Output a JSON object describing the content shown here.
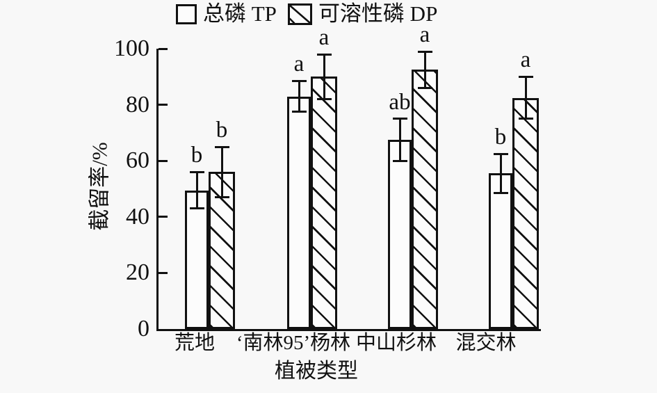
{
  "background": "#f8f8f8",
  "ink": "#111111",
  "chart_data": {
    "type": "bar",
    "categories": [
      "荒地",
      "‘南林95’杨林",
      "中山杉林",
      "混交林"
    ],
    "series": [
      {
        "name": "总磷 TP",
        "fill": "open",
        "values": [
          49.5,
          83,
          67.5,
          55.5
        ],
        "errors": [
          6.5,
          5.5,
          7.5,
          7
        ],
        "sig_letters": [
          "b",
          "a",
          "ab",
          "b"
        ]
      },
      {
        "name": "可溶性磷 DP",
        "fill": "hatched",
        "values": [
          56,
          90,
          92.5,
          82.5
        ],
        "errors": [
          9,
          8,
          6.5,
          7.5
        ],
        "sig_letters": [
          "b",
          "a",
          "a",
          "a"
        ]
      }
    ],
    "xlabel": "植被类型",
    "ylabel": "截留率/%",
    "ylim": [
      0,
      100
    ],
    "yticks": [
      0,
      20,
      40,
      60,
      80,
      100
    ],
    "grid": false,
    "legend_position": "top",
    "error_bars": true,
    "hatch_direction": "backslash"
  }
}
